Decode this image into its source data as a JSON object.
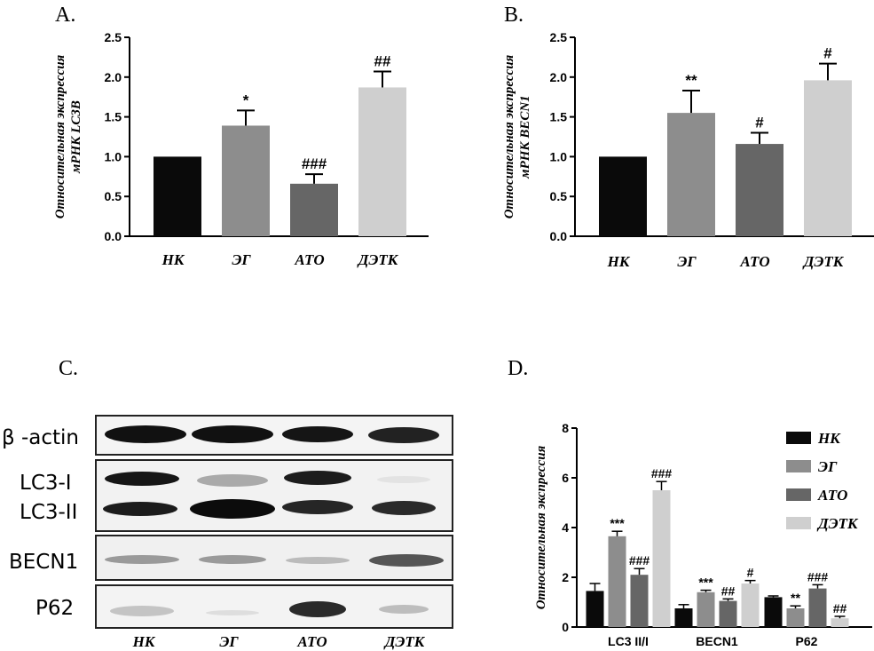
{
  "panels": {
    "a": "A.",
    "b": "B.",
    "c": "C.",
    "d": "D."
  },
  "colors": {
    "nk": "#0a0a0a",
    "eg": "#8d8d8d",
    "ato": "#666666",
    "detk": "#cfcfcf"
  },
  "chart_data": [
    {
      "id": "A",
      "type": "bar",
      "categories": [
        "НК",
        "ЭГ",
        "АТО",
        "ДЭТК"
      ],
      "values": [
        1.0,
        1.39,
        0.66,
        1.87
      ],
      "errors": [
        0.0,
        0.19,
        0.12,
        0.2
      ],
      "annotations": [
        "",
        "*",
        "###",
        "##"
      ],
      "ylabel_lines": [
        "Относительная экспрессия",
        "мРНК LC3B"
      ],
      "ylim": [
        0,
        2.5
      ],
      "yticks": [
        "0.0",
        "0.5",
        "1.0",
        "1.5",
        "2.0",
        "2.5"
      ]
    },
    {
      "id": "B",
      "type": "bar",
      "categories": [
        "НК",
        "ЭГ",
        "АТО",
        "ДЭТК"
      ],
      "values": [
        1.0,
        1.55,
        1.16,
        1.96
      ],
      "errors": [
        0.0,
        0.28,
        0.14,
        0.21
      ],
      "annotations": [
        "",
        "**",
        "#",
        "#"
      ],
      "ylabel_lines": [
        "Относительная экспрессия",
        "мРНК BECN1"
      ],
      "ylim": [
        0,
        2.5
      ],
      "yticks": [
        "0.0",
        "0.5",
        "1.0",
        "1.5",
        "2.0",
        "2.5"
      ]
    },
    {
      "id": "D",
      "type": "bar",
      "categories": [
        "LC3 II/I",
        "BECN1",
        "P62"
      ],
      "series": [
        {
          "name": "НК",
          "values": [
            1.45,
            0.75,
            1.2
          ],
          "errors": [
            0.3,
            0.15,
            0.05
          ],
          "annotations": [
            "",
            "",
            ""
          ]
        },
        {
          "name": "ЭГ",
          "values": [
            3.65,
            1.4,
            0.75
          ],
          "errors": [
            0.2,
            0.08,
            0.1
          ],
          "annotations": [
            "***",
            "***",
            "**"
          ]
        },
        {
          "name": "АТО",
          "values": [
            2.1,
            1.05,
            1.55
          ],
          "errors": [
            0.25,
            0.08,
            0.15
          ],
          "annotations": [
            "###",
            "##",
            "###"
          ]
        },
        {
          "name": "ДЭТК",
          "values": [
            5.5,
            1.75,
            0.35
          ],
          "errors": [
            0.35,
            0.12,
            0.08
          ],
          "annotations": [
            "###",
            "#",
            "##"
          ]
        }
      ],
      "ylabel": "Относительная экспрессия",
      "ylim": [
        0,
        8
      ],
      "yticks": [
        "0",
        "2",
        "4",
        "6",
        "8"
      ],
      "legend": "top-right"
    }
  ],
  "blot": {
    "rows": [
      {
        "label": "β -actin"
      },
      {
        "label": "LC3-I"
      },
      {
        "label": "LC3-II"
      },
      {
        "label": "BECN1"
      },
      {
        "label": "P62"
      }
    ],
    "lanes": [
      "НК",
      "ЭГ",
      "АТО",
      "ДЭТК"
    ]
  }
}
